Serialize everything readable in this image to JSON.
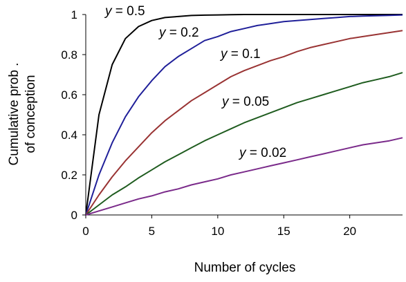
{
  "chart_data": {
    "type": "line",
    "title": "",
    "xlabel": "Number of cycles",
    "ylabel_lines": [
      "Cumulative prob .",
      "of conception"
    ],
    "xlim": [
      0,
      24
    ],
    "ylim": [
      0,
      1
    ],
    "x_ticks": [
      0,
      5,
      10,
      15,
      20
    ],
    "y_ticks": [
      0,
      0.2,
      0.4,
      0.6,
      0.8,
      1
    ],
    "y_tick_labels": [
      "0",
      "0.2",
      "0.4",
      "0.6",
      "0.8",
      "1"
    ],
    "grid": false,
    "legend": "none",
    "x": [
      0,
      1,
      2,
      3,
      4,
      5,
      6,
      7,
      8,
      9,
      10,
      11,
      12,
      13,
      14,
      15,
      16,
      17,
      18,
      19,
      20,
      21,
      22,
      23,
      24
    ],
    "series": [
      {
        "label_var": "y",
        "label_eq": " = 0.5",
        "color": "#000000",
        "values": [
          0,
          0.5,
          0.75,
          0.88,
          0.94,
          0.97,
          0.985,
          0.99,
          0.995,
          0.997,
          0.998,
          0.999,
          1,
          1,
          1,
          1,
          1,
          1,
          1,
          1,
          1,
          1,
          1,
          1,
          1
        ]
      },
      {
        "label_var": "y",
        "label_eq": " = 0.2",
        "color": "#1f1f99",
        "values": [
          0,
          0.2,
          0.36,
          0.49,
          0.59,
          0.67,
          0.74,
          0.79,
          0.83,
          0.87,
          0.89,
          0.915,
          0.93,
          0.945,
          0.955,
          0.965,
          0.97,
          0.975,
          0.98,
          0.985,
          0.99,
          0.992,
          0.994,
          0.996,
          0.998
        ]
      },
      {
        "label_var": "y",
        "label_eq": " = 0.1",
        "color": "#993333",
        "values": [
          0,
          0.1,
          0.19,
          0.27,
          0.34,
          0.41,
          0.47,
          0.52,
          0.57,
          0.61,
          0.65,
          0.69,
          0.72,
          0.745,
          0.77,
          0.79,
          0.815,
          0.835,
          0.85,
          0.865,
          0.88,
          0.89,
          0.9,
          0.91,
          0.92
        ]
      },
      {
        "label_var": "y",
        "label_eq": " = 0.05",
        "color": "#1f5c1f",
        "values": [
          0,
          0.05,
          0.1,
          0.14,
          0.185,
          0.225,
          0.265,
          0.3,
          0.335,
          0.37,
          0.4,
          0.43,
          0.46,
          0.485,
          0.51,
          0.535,
          0.56,
          0.58,
          0.6,
          0.62,
          0.64,
          0.66,
          0.675,
          0.69,
          0.71
        ]
      },
      {
        "label_var": "y",
        "label_eq": " = 0.02",
        "color": "#7a2a8a",
        "values": [
          0,
          0.02,
          0.04,
          0.06,
          0.08,
          0.095,
          0.115,
          0.13,
          0.15,
          0.165,
          0.18,
          0.2,
          0.215,
          0.23,
          0.245,
          0.26,
          0.275,
          0.29,
          0.305,
          0.32,
          0.335,
          0.35,
          0.36,
          0.37,
          0.385
        ]
      }
    ]
  }
}
